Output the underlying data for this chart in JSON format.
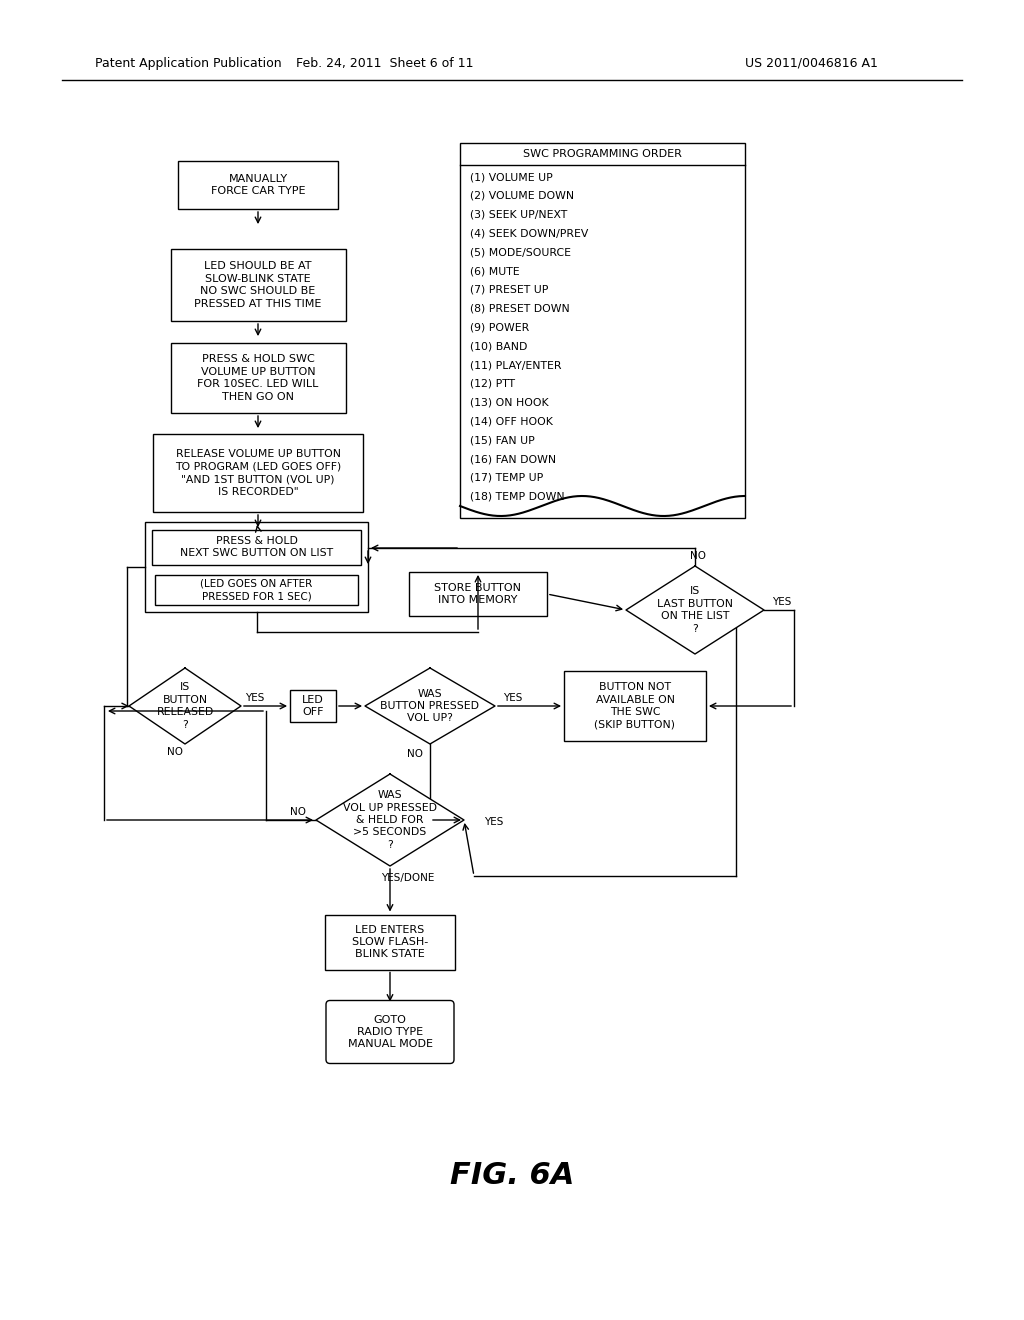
{
  "bg_color": "#ffffff",
  "header_left": "Patent Application Publication",
  "header_mid": "Feb. 24, 2011  Sheet 6 of 11",
  "header_right": "US 2011/0046816 A1",
  "figure_label": "FIG. 6A",
  "swc_title": "SWC PROGRAMMING ORDER",
  "swc_list": [
    "(1) VOLUME UP",
    "(2) VOLUME DOWN",
    "(3) SEEK UP/NEXT",
    "(4) SEEK DOWN/PREV",
    "(5) MODE/SOURCE",
    "(6) MUTE",
    "(7) PRESET UP",
    "(8) PRESET DOWN",
    "(9) POWER",
    "(10) BAND",
    "(11) PLAY/ENTER",
    "(12) PTT",
    "(13) ON HOOK",
    "(14) OFF HOOK",
    "(15) FAN UP",
    "(16) FAN DOWN",
    "(17) TEMP UP",
    "(18) TEMP DOWN"
  ]
}
